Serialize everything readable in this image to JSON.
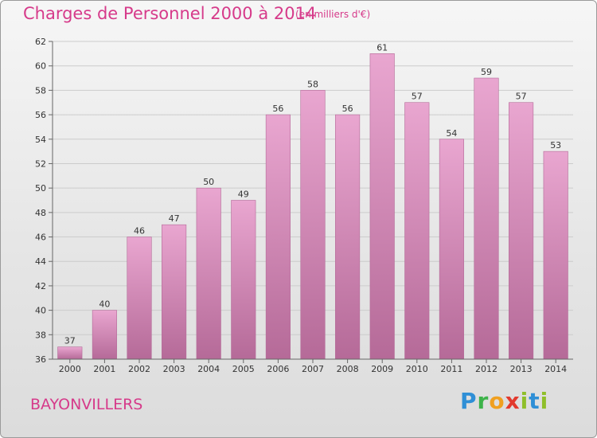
{
  "header": {
    "title": "Charges de Personnel 2000 à 2014",
    "subtitle": "(en milliers d'€)"
  },
  "footer": {
    "place": "BAYONVILLERS",
    "logo": "Proxiti"
  },
  "colors": {
    "bar_top": "#e9a6d0",
    "bar_bottom": "#b56a98",
    "title": "#d63a8a",
    "grid": "#cccccc"
  },
  "chart_data": {
    "type": "bar",
    "title": "Charges de Personnel 2000 à 2014",
    "subtitle": "(en milliers d'€)",
    "xlabel": "",
    "ylabel": "",
    "ylim": [
      36,
      62
    ],
    "yticks": [
      36,
      38,
      40,
      42,
      44,
      46,
      48,
      50,
      52,
      54,
      56,
      58,
      60,
      62
    ],
    "grid": true,
    "categories": [
      "2000",
      "2001",
      "2002",
      "2003",
      "2004",
      "2005",
      "2006",
      "2007",
      "2008",
      "2009",
      "2010",
      "2011",
      "2012",
      "2013",
      "2014"
    ],
    "values": [
      37,
      40,
      46,
      47,
      50,
      49,
      56,
      58,
      56,
      61,
      57,
      54,
      59,
      57,
      53
    ]
  }
}
